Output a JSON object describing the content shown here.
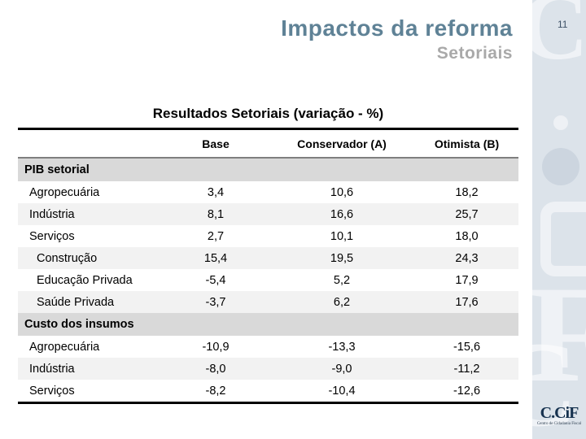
{
  "slide": {
    "title": "Impactos da reforma",
    "subtitle": "Setoriais",
    "page_number": "11"
  },
  "table": {
    "title": "Resultados Setoriais (variação - %)",
    "columns": [
      "Base",
      "Conservador (A)",
      "Otimista (B)"
    ],
    "sections": [
      {
        "header": "PIB setorial",
        "rows": [
          {
            "label": "Agropecuária",
            "indent": 0,
            "values": [
              "3,4",
              "10,6",
              "18,2"
            ]
          },
          {
            "label": "Indústria",
            "indent": 0,
            "values": [
              "8,1",
              "16,6",
              "25,7"
            ]
          },
          {
            "label": "Serviços",
            "indent": 0,
            "values": [
              "2,7",
              "10,1",
              "18,0"
            ]
          },
          {
            "label": "Construção",
            "indent": 1,
            "values": [
              "15,4",
              "19,5",
              "24,3"
            ]
          },
          {
            "label": "Educação Privada",
            "indent": 1,
            "values": [
              "-5,4",
              "5,2",
              "17,9"
            ]
          },
          {
            "label": "Saúde Privada",
            "indent": 1,
            "values": [
              "-3,7",
              "6,2",
              "17,6"
            ]
          }
        ]
      },
      {
        "header": "Custo dos insumos",
        "rows": [
          {
            "label": "Agropecuária",
            "indent": 0,
            "values": [
              "-10,9",
              "-13,3",
              "-15,6"
            ]
          },
          {
            "label": "Indústria",
            "indent": 0,
            "values": [
              "-8,0",
              "-9,0",
              "-11,2"
            ]
          },
          {
            "label": "Serviços",
            "indent": 0,
            "values": [
              "-8,2",
              "-10,4",
              "-12,6"
            ]
          }
        ]
      }
    ]
  },
  "sidebar": {
    "watermark": [
      "C.C",
      "F",
      "C"
    ],
    "logo_text": "C.CiF",
    "logo_tagline": "Centro de Cidadania Fiscal"
  },
  "colors": {
    "title": "#5f8296",
    "subtitle": "#a9a9a9",
    "band_bg": "#dce3ea",
    "section_band": "#d9d9d9",
    "row_stripe": "#f2f2f2",
    "page_number": "#3d5166",
    "logo_navy": "#16324f"
  }
}
